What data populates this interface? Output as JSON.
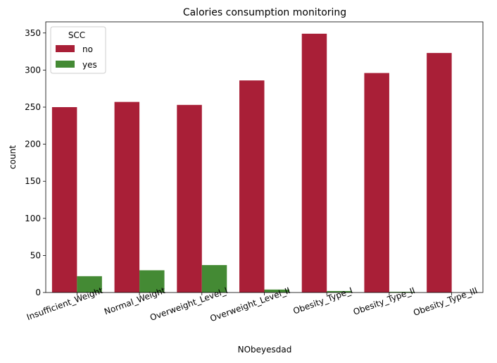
{
  "chart_data": {
    "type": "bar",
    "title": "Calories consumption monitoring",
    "xlabel": "NObeyesdad",
    "ylabel": "count",
    "categories": [
      "Insufficient_Weight",
      "Normal_Weight",
      "Overweight_Level_I",
      "Overweight_Level_II",
      "Obesity_Type_I",
      "Obesity_Type_II",
      "Obesity_Type_III"
    ],
    "series": [
      {
        "name": "no",
        "values": [
          250,
          257,
          253,
          286,
          349,
          296,
          323
        ],
        "color": "#a91f37"
      },
      {
        "name": "yes",
        "values": [
          22,
          30,
          37,
          4,
          2,
          1,
          0
        ],
        "color": "#448a34"
      }
    ],
    "ylim": [
      0,
      365
    ],
    "yticks": [
      0,
      50,
      100,
      150,
      200,
      250,
      300,
      350
    ],
    "legend": {
      "title": "SCC",
      "placement": "top-left"
    },
    "grid": false
  }
}
